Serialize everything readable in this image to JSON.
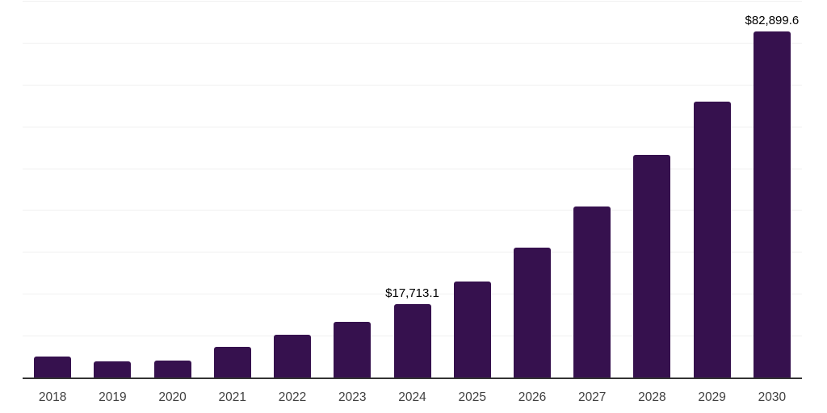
{
  "chart_data": {
    "type": "bar",
    "title": "",
    "xlabel": "",
    "ylabel": "",
    "categories": [
      "2018",
      "2019",
      "2020",
      "2021",
      "2022",
      "2023",
      "2024",
      "2025",
      "2026",
      "2027",
      "2028",
      "2029",
      "2030"
    ],
    "values": [
      5200,
      4100,
      4150,
      7600,
      10500,
      13400,
      17713.1,
      23100,
      31200,
      41100,
      53300,
      66200,
      82899.6
    ],
    "data_labels": {
      "2024": "$17,713.1",
      "2030": "$82,899.6"
    },
    "ylim": [
      0,
      90000
    ],
    "gridline_interval": 10000,
    "grid": true,
    "y_axis_tick_labels_visible": false,
    "legend_position": "none"
  },
  "style": {
    "bar_color": "#36114e",
    "gridline_color": "#f0f0f0",
    "baseline_color": "#333333",
    "tick_label_color": "#404040",
    "data_label_color": "#000000",
    "background_color": "#ffffff"
  }
}
